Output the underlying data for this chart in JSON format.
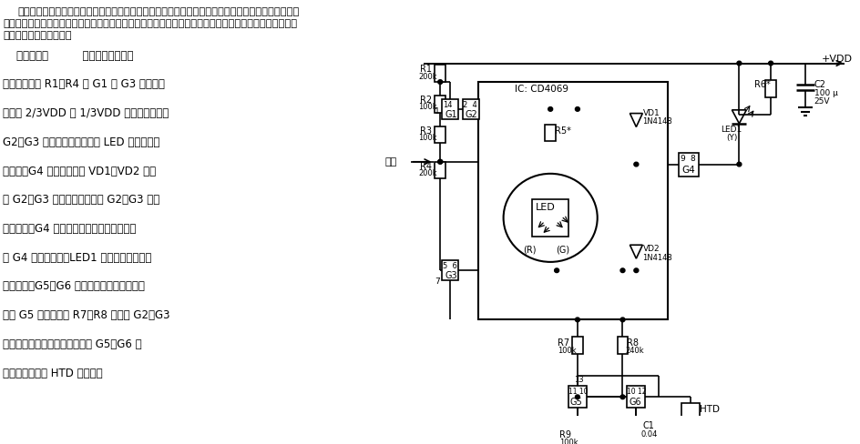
{
  "bg_color": "#ffffff",
  "text_color": "#000000",
  "line_color": "#000000",
  "title_line1": "在检修微机、游戏机和调试数字电路时，使用逻辑电平测试笔要比使用万用表方便得多，这里介绍的逻",
  "title_line2": "辑电平测试笔，可用发光二极管的亮灭和音频振荡器的音频高低，指示被测信号是高电平、低电平、高阻状",
  "title_line3": "态还是变化的脉冲信号。",
  "body_lines": [
    "    电路示于图          接通电源后，如果",
    "探针悬空，则 R1～R4 将 G1 和 G3 的输入端",
    "偏置在 2/3VDD 和 1/3VDD 的电位上，导致",
    "G2、G3 均输出高电平，双色 LED 不发光；另",
    "一方面，G4 的输入端通过 VD1、VD2 分别",
    "与 G2、G3 的输出端相连。在 G2、G3 输出",
    "高电平时，G4 的输入端相当于输入高电平，",
    "故 G4 输出低电平，LED1 点亮，指示逻辑笔",
    "工作正常。G5、G6 构成简单的音频振荡器，",
    "由于 G5 的输入端经 R7、R8 分别接 G2、G3",
    "的输出端，此时均为高电平，故 G5、G6 停",
    "振，压电陶瓷片 HTD 不发声。"
  ],
  "gnd_color": "#cc0000"
}
